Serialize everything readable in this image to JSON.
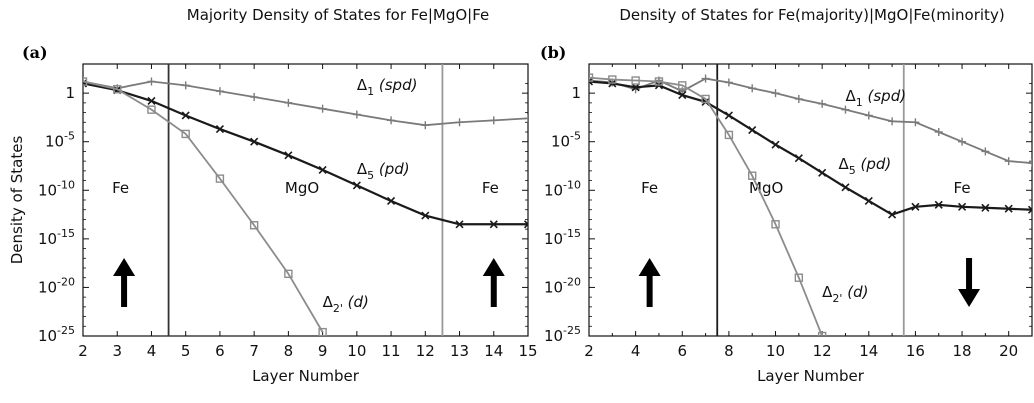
{
  "chart_data": [
    {
      "type": "line",
      "panel_letter": "(a)",
      "title": "Majority Density of States for Fe|MgO|Fe",
      "xlabel": "Layer Number",
      "ylabel": "Density of States",
      "xlim": [
        2,
        15
      ],
      "ylim_log10": [
        -25,
        3
      ],
      "log_y": true,
      "grid": false,
      "x_ticks": [
        "2",
        "3",
        "4",
        "5",
        "6",
        "7",
        "8",
        "9",
        "10",
        "11",
        "12",
        "13",
        "14",
        "15"
      ],
      "x_tick_values": [
        2,
        3,
        4,
        5,
        6,
        7,
        8,
        9,
        10,
        11,
        12,
        13,
        14,
        15
      ],
      "y_ticks": [
        "1",
        "10-5",
        "10-10",
        "10-15",
        "10-20",
        "10-25"
      ],
      "y_tick_values_log10": [
        0,
        -5,
        -10,
        -15,
        -20,
        -25
      ],
      "interfaces": [
        {
          "x": 4.5,
          "color": "#333333"
        },
        {
          "x": 12.5,
          "color": "#999999"
        }
      ],
      "regions": [
        {
          "label": "Fe",
          "x": 3.1,
          "y_log10": -10.3
        },
        {
          "label": "MgO",
          "x": 8.4,
          "y_log10": -10.3
        },
        {
          "label": "Fe",
          "x": 13.9,
          "y_log10": -10.3
        }
      ],
      "spin_arrows": [
        {
          "x": 3.2,
          "direction": "up"
        },
        {
          "x": 14.0,
          "direction": "up"
        }
      ],
      "series": [
        {
          "name": "Δ1 (spd)",
          "label_symbol": "Δ",
          "label_sub": "1",
          "label_text": " (spd)",
          "label_at": {
            "x": 10.0,
            "y_log10": 0.3
          },
          "color": "#7a7a7a",
          "marker": "plus",
          "x": [
            2,
            3,
            4,
            5,
            6,
            7,
            8,
            9,
            10,
            11,
            12,
            13,
            14,
            15
          ],
          "y_log10": [
            1.2,
            0.5,
            1.2,
            0.8,
            0.2,
            -0.4,
            -1.0,
            -1.6,
            -2.2,
            -2.8,
            -3.3,
            -3.0,
            -2.8,
            -2.6
          ]
        },
        {
          "name": "Δ5 (pd)",
          "label_symbol": "Δ",
          "label_sub": "5",
          "label_text": " (pd)",
          "label_at": {
            "x": 10.0,
            "y_log10": -8.3
          },
          "color": "#1a1a1a",
          "marker": "x",
          "x": [
            2,
            3,
            4,
            5,
            6,
            7,
            8,
            9,
            10,
            11,
            12,
            13,
            14,
            15
          ],
          "y_log10": [
            1.0,
            0.3,
            -0.8,
            -2.3,
            -3.7,
            -5.0,
            -6.4,
            -7.9,
            -9.5,
            -11.1,
            -12.6,
            -13.5,
            -13.5,
            -13.5
          ]
        },
        {
          "name": "Δ2' (d)",
          "label_symbol": "Δ",
          "label_sub": "2'",
          "label_text": " (d)",
          "label_at": {
            "x": 9.0,
            "y_log10": -22.0
          },
          "color": "#8c8c8c",
          "marker": "square",
          "x": [
            2,
            3,
            4,
            5,
            6,
            7,
            8,
            9
          ],
          "y_log10": [
            1.2,
            0.4,
            -1.7,
            -4.2,
            -8.8,
            -13.6,
            -18.6,
            -24.6
          ]
        }
      ]
    },
    {
      "type": "line",
      "panel_letter": "(b)",
      "title": "Density of States for Fe(majority)|MgO|Fe(minority)",
      "xlabel": "Layer Number",
      "ylabel": "",
      "xlim": [
        2,
        21
      ],
      "ylim_log10": [
        -25,
        3
      ],
      "log_y": true,
      "grid": false,
      "x_ticks": [
        "2",
        "4",
        "6",
        "8",
        "10",
        "12",
        "14",
        "16",
        "18",
        "20"
      ],
      "x_tick_values": [
        2,
        4,
        6,
        8,
        10,
        12,
        14,
        16,
        18,
        20
      ],
      "y_ticks": [
        "1",
        "10-5",
        "10-10",
        "10-15",
        "10-20",
        "10-25"
      ],
      "y_tick_values_log10": [
        0,
        -5,
        -10,
        -15,
        -20,
        -25
      ],
      "interfaces": [
        {
          "x": 7.5,
          "color": "#1a1a1a"
        },
        {
          "x": 15.5,
          "color": "#999999"
        }
      ],
      "regions": [
        {
          "label": "Fe",
          "x": 4.6,
          "y_log10": -10.3
        },
        {
          "label": "MgO",
          "x": 9.6,
          "y_log10": -10.3
        },
        {
          "label": "Fe",
          "x": 18.0,
          "y_log10": -10.3
        }
      ],
      "spin_arrows": [
        {
          "x": 4.6,
          "direction": "up"
        },
        {
          "x": 18.3,
          "direction": "down"
        }
      ],
      "series": [
        {
          "name": "Δ1 (spd)",
          "label_symbol": "Δ",
          "label_sub": "1",
          "label_text": " (spd)",
          "label_at": {
            "x": 13.0,
            "y_log10": -0.8
          },
          "color": "#7a7a7a",
          "marker": "plus",
          "x": [
            2,
            3,
            4,
            5,
            6,
            7,
            8,
            9,
            10,
            11,
            12,
            13,
            14,
            15,
            16,
            17,
            18,
            19,
            20,
            21
          ],
          "y_log10": [
            1.3,
            1.1,
            0.4,
            1.3,
            0.2,
            1.5,
            1.1,
            0.5,
            0.0,
            -0.6,
            -1.1,
            -1.7,
            -2.3,
            -2.9,
            -3.0,
            -4.0,
            -5.0,
            -6.0,
            -7.0,
            -7.2
          ]
        },
        {
          "name": "Δ5 (pd)",
          "label_symbol": "Δ",
          "label_sub": "5",
          "label_text": " (pd)",
          "label_at": {
            "x": 12.7,
            "y_log10": -7.8
          },
          "color": "#1a1a1a",
          "marker": "x",
          "x": [
            2,
            3,
            4,
            5,
            6,
            7,
            8,
            9,
            10,
            11,
            12,
            13,
            14,
            15,
            16,
            17,
            18,
            19,
            20,
            21
          ],
          "y_log10": [
            1.2,
            1.0,
            0.6,
            0.8,
            -0.2,
            -0.9,
            -2.3,
            -3.8,
            -5.3,
            -6.7,
            -8.2,
            -9.7,
            -11.1,
            -12.5,
            -11.7,
            -11.5,
            -11.7,
            -11.8,
            -11.9,
            -12.0
          ]
        },
        {
          "name": "Δ2' (d)",
          "label_symbol": "Δ",
          "label_sub": "2'",
          "label_text": " (d)",
          "label_at": {
            "x": 12.0,
            "y_log10": -21.0
          },
          "color": "#8c8c8c",
          "marker": "square",
          "x": [
            2,
            3,
            4,
            5,
            6,
            7,
            8,
            9,
            10,
            11,
            12
          ],
          "y_log10": [
            1.6,
            1.4,
            1.3,
            1.2,
            0.8,
            -0.6,
            -4.3,
            -8.5,
            -13.5,
            -19.0,
            -25.0
          ]
        }
      ]
    }
  ]
}
